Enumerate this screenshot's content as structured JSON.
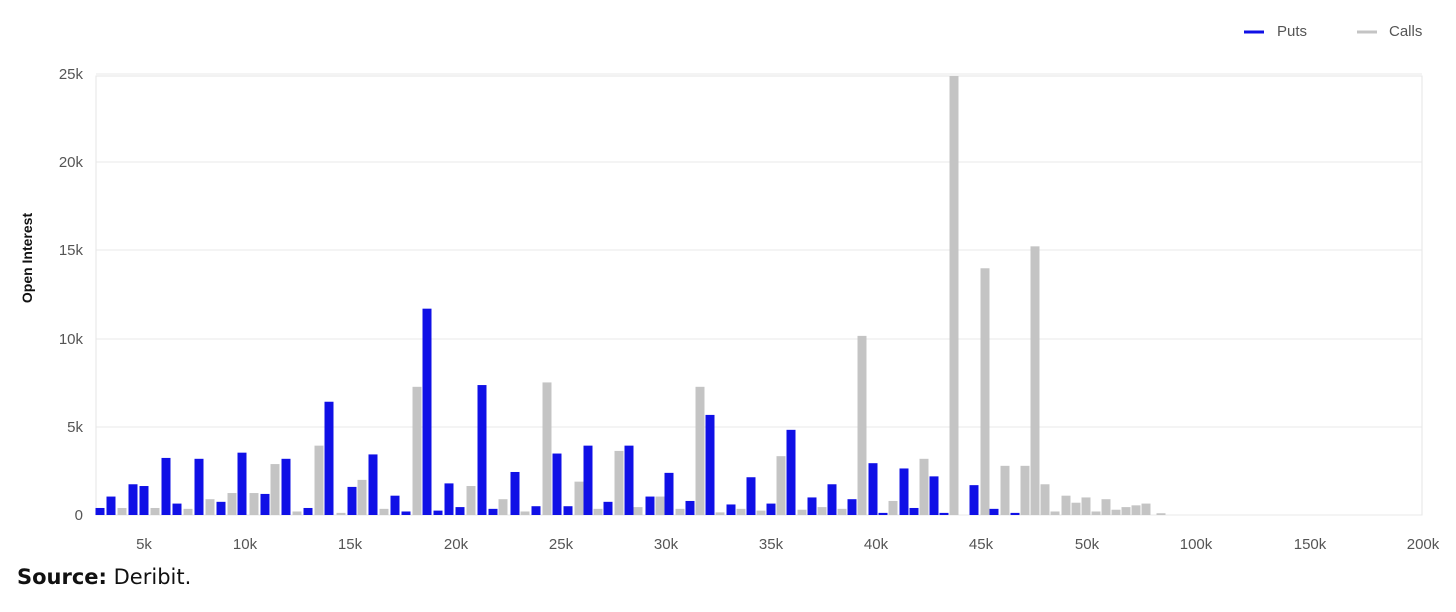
{
  "chart_data": {
    "type": "bar",
    "ylabel": "Open Interest",
    "ylim": [
      0,
      25000
    ],
    "y_ticks": [
      "0",
      "5k",
      "10k",
      "15k",
      "20k",
      "25k"
    ],
    "x_tick_labels": [
      "5k",
      "10k",
      "15k",
      "20k",
      "25k",
      "30k",
      "35k",
      "40k",
      "45k",
      "50k",
      "100k",
      "150k",
      "200k"
    ],
    "legend_position": "top-right",
    "grid": true,
    "series": [
      {
        "name": "Puts",
        "color": "#1010e6",
        "values": [
          400,
          1050,
          1750,
          3250,
          3200,
          3550,
          3200,
          6450,
          3450,
          11750,
          7400,
          3500,
          3950,
          2450,
          2050,
          5000,
          2950,
          2700,
          100,
          30,
          400,
          1100,
          1650,
          800,
          650,
          750,
          1600,
          30,
          700,
          200,
          1000,
          1800,
          200,
          4800,
          650,
          2200,
          1150,
          450,
          1650,
          1750,
          2450,
          4000,
          1100,
          1000,
          550,
          250,
          1800,
          2200,
          20
        ]
      },
      {
        "name": "Calls",
        "color": "#c4c4c4",
        "values": [
          400,
          400,
          900,
          1250,
          2950,
          3950,
          2000,
          7300,
          1650,
          7550,
          1900,
          3600,
          1050,
          6800,
          3350,
          10200,
          3200,
          25000,
          14050,
          2750,
          2800,
          1700,
          1100,
          1000,
          900,
          450,
          650,
          250,
          350,
          200,
          350,
          250,
          850,
          1050,
          150,
          150,
          150,
          200,
          50,
          450,
          200,
          400,
          30
        ]
      }
    ]
  },
  "source": {
    "label": "Source:",
    "text": "Deribit."
  }
}
